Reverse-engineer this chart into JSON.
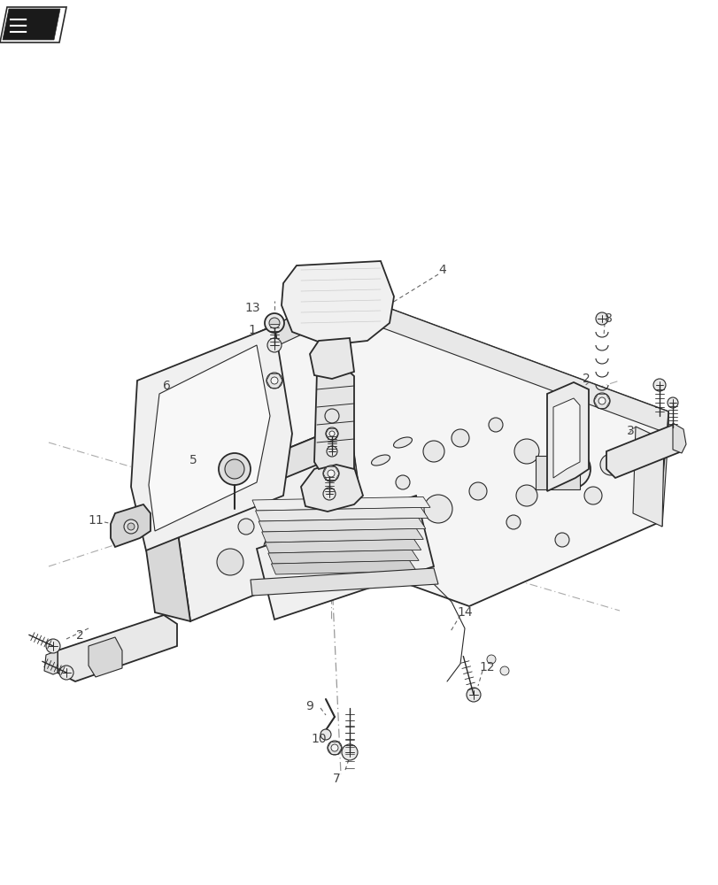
{
  "background_color": "#ffffff",
  "line_color": "#2a2a2a",
  "label_color": "#444444",
  "fig_width": 8.12,
  "fig_height": 10.0,
  "dpi": 100
}
